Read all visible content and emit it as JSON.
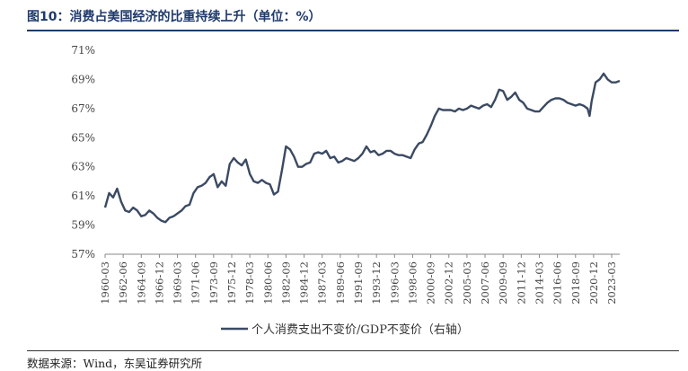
{
  "figure": {
    "title": "图10：消费占美国经济的比重持续上升（单位：%）",
    "source": "数据来源：Wind，东吴证券研究所"
  },
  "colors": {
    "line": "#3b4a63",
    "title": "#1f3a6b",
    "axis": "#888888",
    "text": "#444444"
  },
  "chart_data": {
    "type": "line",
    "title": "",
    "ylabel": "",
    "xlabel": "",
    "ylim": [
      57,
      71
    ],
    "yticks": [
      "57%",
      "59%",
      "61%",
      "63%",
      "65%",
      "67%",
      "69%",
      "71%"
    ],
    "grid": false,
    "legend_position": "bottom",
    "x_tick_labels": [
      "1960-03",
      "1962-06",
      "1964-09",
      "1966-12",
      "1969-03",
      "1971-06",
      "1973-09",
      "1975-12",
      "1978-03",
      "1980-06",
      "1982-09",
      "1984-12",
      "1987-03",
      "1989-06",
      "1991-09",
      "1993-12",
      "1996-03",
      "1998-06",
      "2000-09",
      "2002-12",
      "2005-03",
      "2007-06",
      "2009-09",
      "2011-12",
      "2014-03",
      "2016-06",
      "2018-09",
      "2020-12",
      "2023-03"
    ],
    "series": [
      {
        "name": "个人消费支出不变价/GDP不变价（右轴）",
        "x": [
          "1960-03",
          "1960-09",
          "1961-03",
          "1961-09",
          "1962-03",
          "1962-09",
          "1963-03",
          "1963-09",
          "1964-03",
          "1964-09",
          "1965-03",
          "1965-09",
          "1966-03",
          "1966-09",
          "1967-03",
          "1967-09",
          "1968-03",
          "1968-09",
          "1969-03",
          "1969-09",
          "1970-03",
          "1970-09",
          "1971-03",
          "1971-09",
          "1972-03",
          "1972-09",
          "1973-03",
          "1973-09",
          "1974-03",
          "1974-09",
          "1975-03",
          "1975-09",
          "1976-03",
          "1976-09",
          "1977-03",
          "1977-09",
          "1978-03",
          "1978-09",
          "1979-03",
          "1979-09",
          "1980-03",
          "1980-09",
          "1981-03",
          "1981-09",
          "1982-03",
          "1982-09",
          "1983-03",
          "1983-09",
          "1984-03",
          "1984-09",
          "1985-03",
          "1985-09",
          "1986-03",
          "1986-09",
          "1987-03",
          "1987-09",
          "1988-03",
          "1988-09",
          "1989-03",
          "1989-09",
          "1990-03",
          "1990-09",
          "1991-03",
          "1991-09",
          "1992-03",
          "1992-09",
          "1993-03",
          "1993-09",
          "1994-03",
          "1994-09",
          "1995-03",
          "1995-09",
          "1996-03",
          "1996-09",
          "1997-03",
          "1997-09",
          "1998-03",
          "1998-09",
          "1999-03",
          "1999-09",
          "2000-03",
          "2000-09",
          "2001-03",
          "2001-09",
          "2002-03",
          "2002-09",
          "2003-03",
          "2003-09",
          "2004-03",
          "2004-09",
          "2005-03",
          "2005-09",
          "2006-03",
          "2006-09",
          "2007-03",
          "2007-09",
          "2008-03",
          "2008-09",
          "2009-03",
          "2009-09",
          "2010-03",
          "2010-09",
          "2011-03",
          "2011-09",
          "2012-03",
          "2012-09",
          "2013-03",
          "2013-09",
          "2014-03",
          "2014-09",
          "2015-03",
          "2015-09",
          "2016-03",
          "2016-09",
          "2017-03",
          "2017-09",
          "2018-03",
          "2018-09",
          "2019-03",
          "2019-09",
          "2020-03",
          "2020-06",
          "2020-09",
          "2021-03",
          "2021-09",
          "2022-03",
          "2022-09",
          "2023-03",
          "2023-09",
          "2024-03"
        ],
        "values": [
          60.2,
          61.2,
          60.9,
          61.5,
          60.6,
          60.0,
          59.9,
          60.2,
          60.0,
          59.6,
          59.7,
          60.0,
          59.8,
          59.5,
          59.3,
          59.2,
          59.5,
          59.6,
          59.8,
          60.0,
          60.3,
          60.4,
          61.2,
          61.6,
          61.7,
          61.9,
          62.3,
          62.5,
          61.6,
          62.0,
          61.7,
          63.2,
          63.6,
          63.3,
          63.1,
          63.5,
          62.5,
          62.0,
          61.9,
          62.1,
          61.9,
          61.8,
          61.1,
          61.3,
          62.8,
          64.4,
          64.2,
          63.7,
          63.0,
          63.0,
          63.2,
          63.3,
          63.9,
          64.0,
          63.9,
          64.1,
          63.6,
          63.7,
          63.3,
          63.4,
          63.6,
          63.5,
          63.4,
          63.6,
          63.9,
          64.4,
          64.0,
          64.1,
          63.8,
          63.9,
          64.1,
          64.1,
          63.9,
          63.8,
          63.8,
          63.7,
          63.6,
          64.2,
          64.6,
          64.7,
          65.2,
          65.8,
          66.5,
          67.0,
          66.9,
          66.9,
          66.9,
          66.8,
          67.0,
          66.9,
          67.0,
          67.2,
          67.1,
          67.0,
          67.2,
          67.3,
          67.1,
          67.6,
          68.3,
          68.2,
          67.6,
          67.8,
          68.1,
          67.6,
          67.4,
          67.0,
          66.9,
          66.8,
          66.8,
          67.1,
          67.4,
          67.6,
          67.7,
          67.7,
          67.6,
          67.4,
          67.3,
          67.2,
          67.3,
          67.2,
          67.0,
          66.5,
          67.5,
          68.8,
          69.0,
          69.4,
          69.0,
          68.8,
          68.8,
          68.9
        ]
      }
    ]
  }
}
